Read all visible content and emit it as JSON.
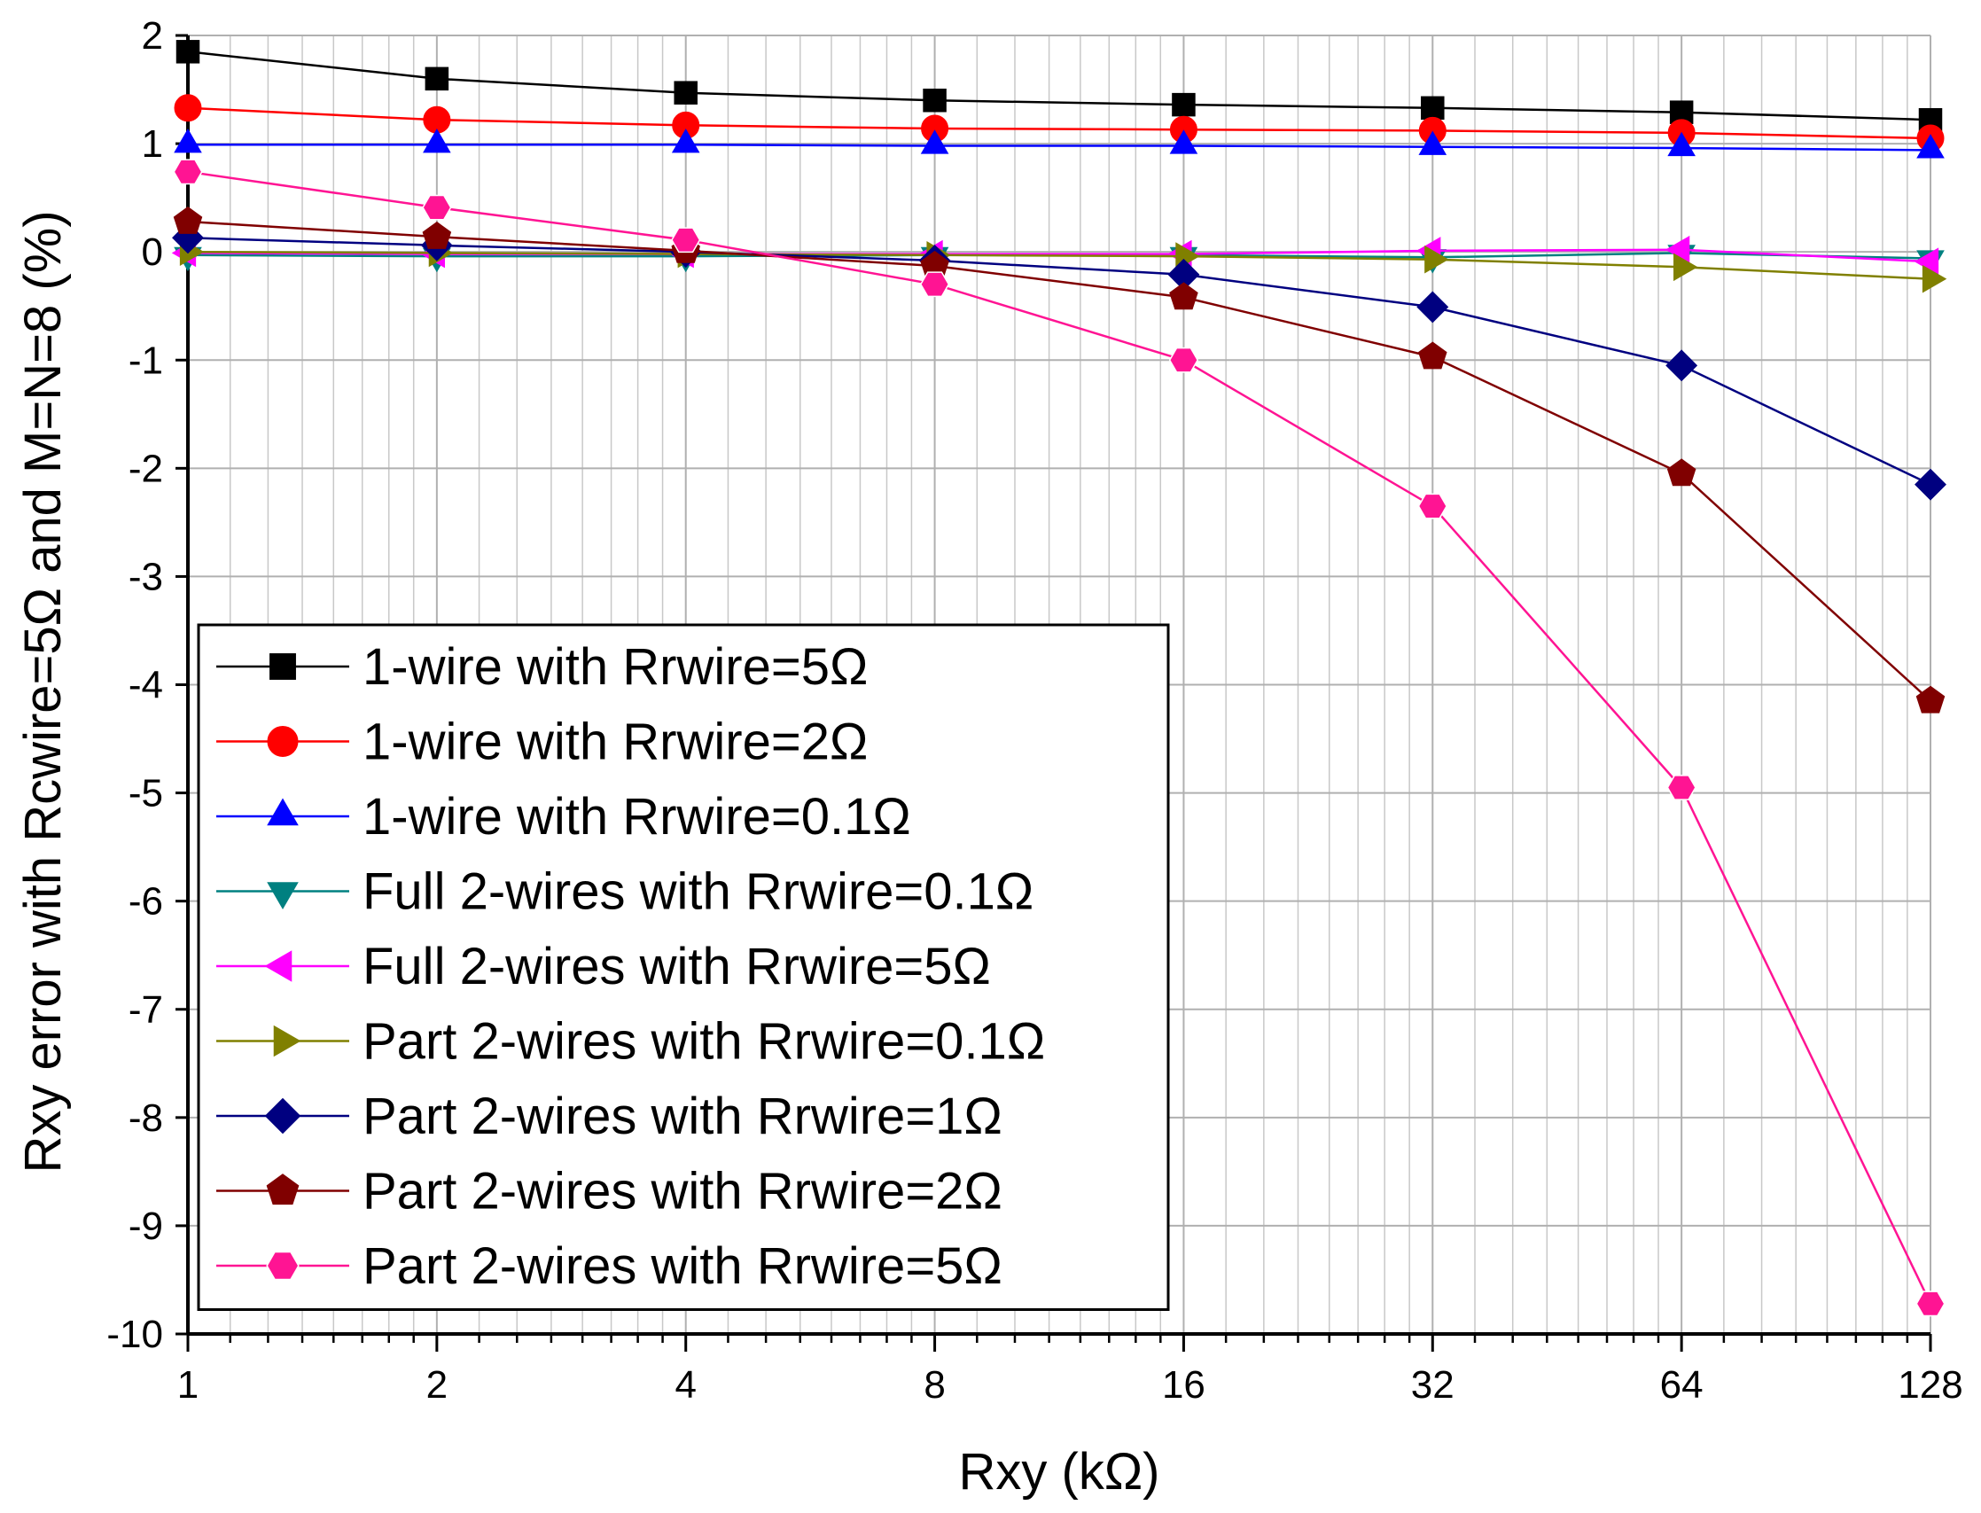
{
  "chart_data": {
    "type": "line",
    "title": "",
    "xlabel": "Rxy (kΩ)",
    "ylabel": "Rxy error with Rcwire=5Ω and M=N=8 (%)",
    "x_scale": "log2",
    "x": [
      1,
      2,
      4,
      8,
      16,
      32,
      64,
      128
    ],
    "x_tick_labels": [
      "1",
      "2",
      "4",
      "8",
      "16",
      "32",
      "64",
      "128"
    ],
    "xlim": [
      1,
      128
    ],
    "ylim": [
      -10,
      2
    ],
    "y_ticks": [
      2,
      1,
      0,
      -1,
      -2,
      -3,
      -4,
      -5,
      -6,
      -7,
      -8,
      -9,
      -10
    ],
    "y_tick_labels": [
      "2",
      "1",
      "0",
      "-1",
      "-2",
      "-3",
      "-4",
      "-5",
      "-6",
      "-7",
      "-8",
      "-9",
      "-10"
    ],
    "grid": true,
    "legend_position": "bottom-left",
    "series": [
      {
        "name": "1-wire with Rrwire=5Ω",
        "color": "#000000",
        "marker": "square",
        "values": [
          1.85,
          1.6,
          1.47,
          1.4,
          1.36,
          1.33,
          1.29,
          1.22
        ]
      },
      {
        "name": "1-wire with Rrwire=2Ω",
        "color": "#ff0000",
        "marker": "circle",
        "values": [
          1.33,
          1.22,
          1.17,
          1.14,
          1.13,
          1.12,
          1.1,
          1.05
        ]
      },
      {
        "name": "1-wire with Rrwire=0.1Ω",
        "color": "#0000ff",
        "marker": "triangle-up",
        "values": [
          0.99,
          0.99,
          0.99,
          0.98,
          0.98,
          0.97,
          0.96,
          0.94
        ]
      },
      {
        "name": "Full 2-wires with Rrwire=0.1Ω",
        "color": "#008080",
        "marker": "triangle-down",
        "values": [
          -0.03,
          -0.04,
          -0.04,
          -0.03,
          -0.03,
          -0.05,
          -0.01,
          -0.06
        ]
      },
      {
        "name": "Full 2-wires with Rrwire=5Ω",
        "color": "#ff00ff",
        "marker": "triangle-left",
        "values": [
          -0.01,
          -0.02,
          -0.02,
          -0.02,
          -0.02,
          0.01,
          0.02,
          -0.09
        ]
      },
      {
        "name": "Part 2-wires with Rrwire=0.1Ω",
        "color": "#808000",
        "marker": "triangle-right",
        "values": [
          0.0,
          -0.01,
          -0.02,
          -0.03,
          -0.04,
          -0.07,
          -0.14,
          -0.25
        ]
      },
      {
        "name": "Part 2-wires with Rrwire=1Ω",
        "color": "#000080",
        "marker": "diamond",
        "values": [
          0.13,
          0.06,
          0.0,
          -0.08,
          -0.21,
          -0.51,
          -1.05,
          -2.15
        ]
      },
      {
        "name": "Part 2-wires with Rrwire=2Ω",
        "color": "#800000",
        "marker": "pentagon",
        "values": [
          0.28,
          0.14,
          0.01,
          -0.13,
          -0.42,
          -0.97,
          -2.05,
          -4.15
        ]
      },
      {
        "name": "Part 2-wires with Rrwire=5Ω",
        "color": "#ff1493",
        "marker": "hexagon",
        "values": [
          0.74,
          0.41,
          0.11,
          -0.3,
          -1.0,
          -2.35,
          -4.95,
          -9.72
        ]
      }
    ]
  }
}
